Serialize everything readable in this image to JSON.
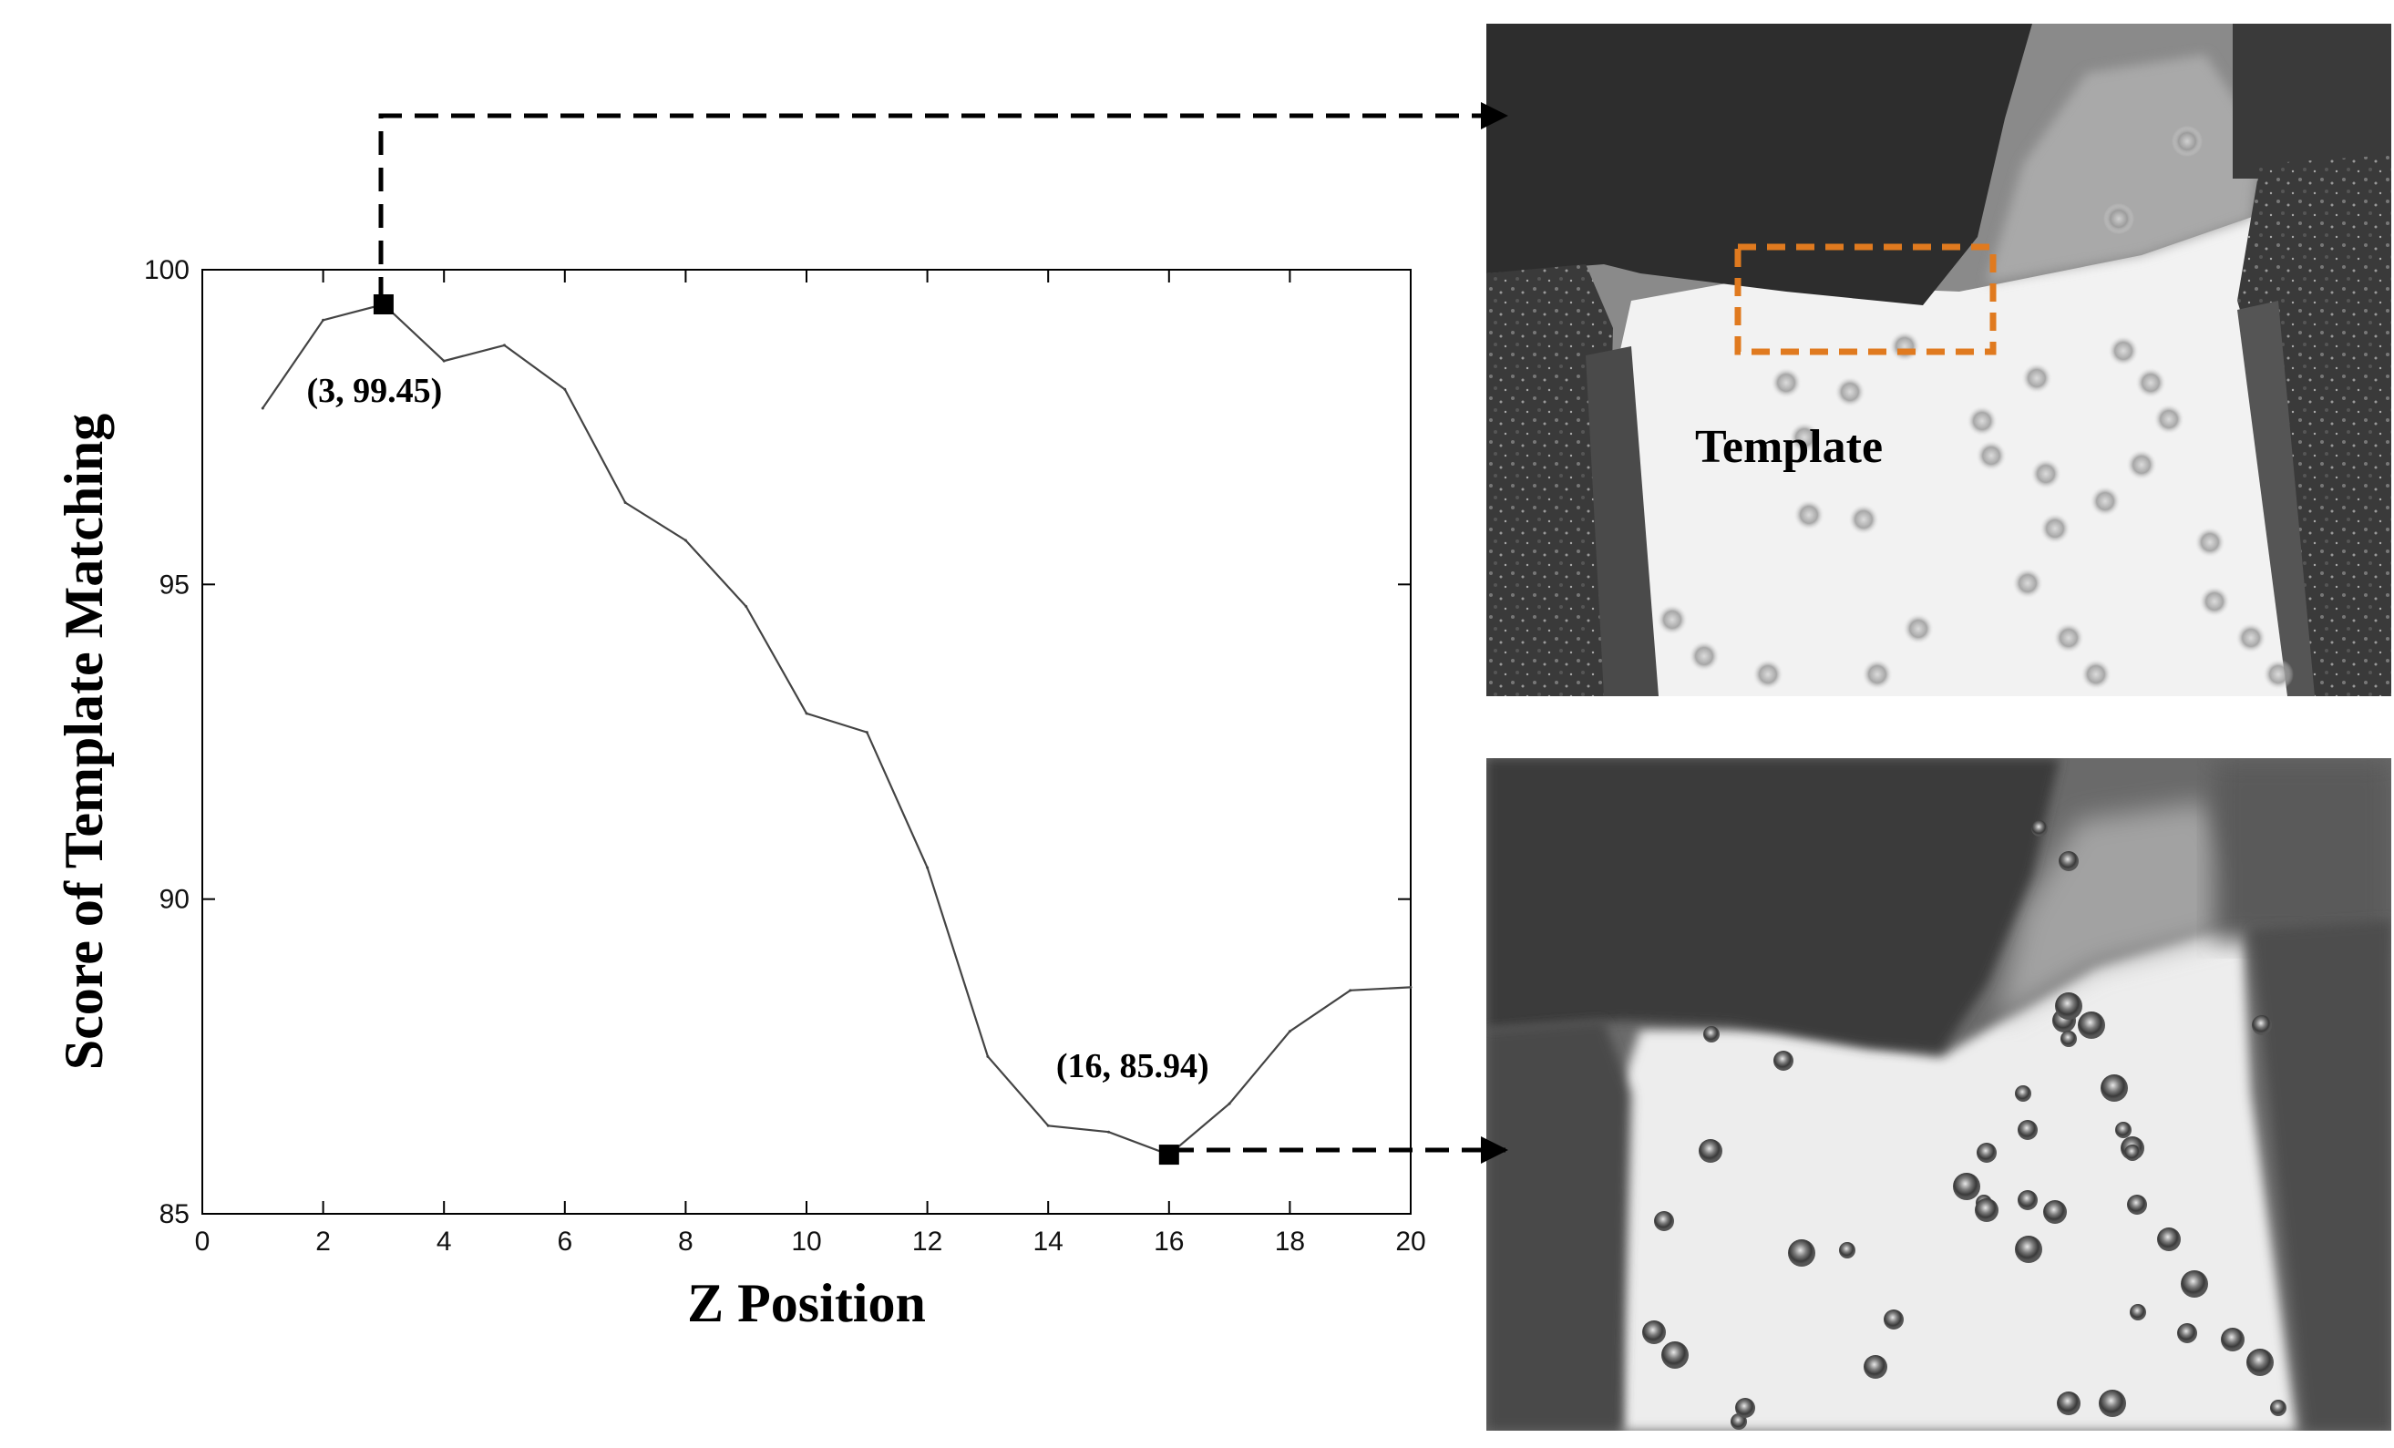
{
  "chart_data": {
    "type": "line",
    "title": "",
    "xlabel": "Z Position",
    "ylabel": "Score of Template Matching",
    "xlim": [
      0,
      20
    ],
    "ylim": [
      85,
      100
    ],
    "x_ticks": [
      0,
      2,
      4,
      6,
      8,
      10,
      12,
      14,
      16,
      18,
      20
    ],
    "y_ticks": [
      85,
      90,
      95,
      100
    ],
    "grid": false,
    "series": [
      {
        "x": [
          1,
          2,
          3,
          4,
          5,
          6,
          7,
          8,
          9,
          10,
          11,
          12,
          13,
          14,
          15,
          16,
          17,
          18,
          19,
          20
        ],
        "values": [
          97.8,
          99.2,
          99.45,
          98.55,
          98.8,
          98.1,
          96.3,
          95.7,
          94.65,
          92.95,
          92.65,
          90.5,
          87.5,
          86.4,
          86.3,
          85.94,
          86.75,
          87.9,
          88.55,
          88.6
        ]
      }
    ],
    "annotations": [
      {
        "x": 3,
        "y": 99.45,
        "text": "(3, 99.45)"
      },
      {
        "x": 16,
        "y": 85.94,
        "text": "(16, 85.94)"
      }
    ]
  },
  "images": {
    "top_label": "Template",
    "template_box_color": "#e07a1f"
  }
}
